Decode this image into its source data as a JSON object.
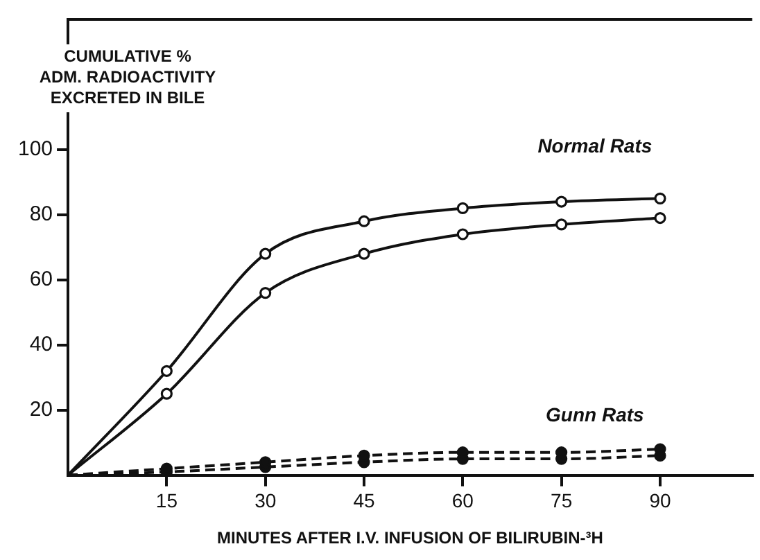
{
  "chart_data": {
    "type": "line",
    "xlabel": "MINUTES AFTER I.V. INFUSION OF BILIRUBIN-³H",
    "ylabel": "CUMULATIVE %\nADM. RADIOACTIVITY\nEXCRETED IN BILE",
    "x": [
      0,
      15,
      30,
      45,
      60,
      75,
      90
    ],
    "series": [
      {
        "color": "#111111",
        "values": [
          0,
          32,
          68,
          78,
          82,
          84,
          85
        ],
        "marker": "circle",
        "line_style": "solid"
      },
      {
        "color": "#111111",
        "values": [
          0,
          25,
          56,
          68,
          74,
          77,
          79
        ],
        "marker": "circle",
        "line_style": "solid"
      },
      {
        "color": "#111111",
        "values": [
          0,
          2,
          4,
          6,
          7,
          7,
          8
        ],
        "marker": "circle",
        "line_style": "dashed"
      },
      {
        "color": "#111111",
        "values": [
          0,
          1,
          2.5,
          4,
          5,
          5,
          6
        ],
        "marker": "circle",
        "line_style": "dashed"
      }
    ],
    "annotations": [
      "Normal Rats",
      "Gunn Rats"
    ],
    "xlim": [
      0,
      104
    ],
    "xticks": [
      15,
      30,
      45,
      60,
      75,
      90
    ],
    "ylim": [
      0,
      140
    ],
    "yticks": [
      20,
      40,
      60,
      80,
      100
    ],
    "grid": false,
    "legend": false
  }
}
